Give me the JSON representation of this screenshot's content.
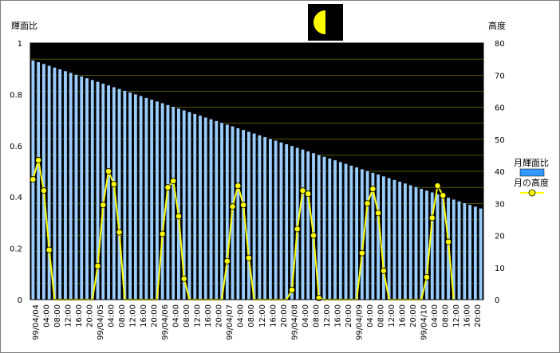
{
  "chart_data": {
    "type": "bar+line",
    "y_left_label": "輝面比",
    "y_right_label": "高度",
    "y_left_range": [
      0,
      1
    ],
    "y_right_range": [
      0,
      80
    ],
    "y_left_ticks": [
      "0",
      "0.2",
      "0.4",
      "0.6",
      "0.8",
      "1"
    ],
    "y_right_ticks": [
      "0",
      "10",
      "20",
      "30",
      "40",
      "50",
      "60",
      "70",
      "80"
    ],
    "x_tick_labels": [
      "99/04/04",
      "04:00",
      "08:00",
      "12:00",
      "16:00",
      "20:00",
      "99/04/05",
      "04:00",
      "08:00",
      "12:00",
      "16:00",
      "20:00",
      "99/04/06",
      "04:00",
      "08:00",
      "12:00",
      "16:00",
      "20:00",
      "99/04/07",
      "04:00",
      "08:00",
      "12:00",
      "16:00",
      "20:00",
      "99/04/08",
      "04:00",
      "08:00",
      "12:00",
      "16:00",
      "20:00",
      "99/04/09",
      "04:00",
      "08:00",
      "12:00",
      "16:00",
      "20:00",
      "99/04/10",
      "04:00",
      "08:00",
      "12:00",
      "16:00",
      "20:00"
    ],
    "series": [
      {
        "name": "月輝面比",
        "axis": "left",
        "kind": "bar",
        "color": "#99ccff",
        "start": 0.933,
        "end": 0.356,
        "count": 84,
        "interval_hours": 2
      },
      {
        "name": "月の高度",
        "axis": "right",
        "kind": "line",
        "color": "#ffff00",
        "points": [
          [
            0,
            37.5
          ],
          [
            2,
            43.5
          ],
          [
            4,
            34
          ],
          [
            6,
            15.5
          ],
          [
            8,
            0
          ],
          [
            22,
            0
          ],
          [
            24,
            10.5
          ],
          [
            26,
            29.5
          ],
          [
            28,
            40
          ],
          [
            30,
            36
          ],
          [
            32,
            21
          ],
          [
            34,
            0
          ],
          [
            46,
            0
          ],
          [
            48,
            20.5
          ],
          [
            50,
            35
          ],
          [
            52,
            37
          ],
          [
            54,
            26
          ],
          [
            56,
            6.5
          ],
          [
            58,
            0
          ],
          [
            70,
            0
          ],
          [
            72,
            12
          ],
          [
            74,
            29
          ],
          [
            76,
            35.5
          ],
          [
            78,
            29.5
          ],
          [
            80,
            13
          ],
          [
            82,
            0
          ],
          [
            94,
            0
          ],
          [
            96,
            3
          ],
          [
            98,
            22
          ],
          [
            100,
            34
          ],
          [
            102,
            33
          ],
          [
            104,
            20
          ],
          [
            106,
            0.5
          ],
          [
            108,
            0
          ],
          [
            120,
            0
          ],
          [
            122,
            14.5
          ],
          [
            124,
            30
          ],
          [
            126,
            34.5
          ],
          [
            128,
            27
          ],
          [
            130,
            9
          ],
          [
            132,
            0
          ],
          [
            144,
            0
          ],
          [
            146,
            7
          ],
          [
            148,
            25.5
          ],
          [
            150,
            35.5
          ],
          [
            152,
            32.5
          ],
          [
            154,
            18
          ],
          [
            156,
            0
          ]
        ]
      }
    ],
    "colors": {
      "plot_background": "#000000",
      "gridline": "#bfbf00",
      "bar_fill": "#99ccff",
      "bar_stroke": "#000000",
      "line": "#ffff00",
      "marker_fill": "#ffff00",
      "marker_stroke": "#000000"
    },
    "legend_position": "right"
  },
  "moon_icon": "half-moon-icon"
}
